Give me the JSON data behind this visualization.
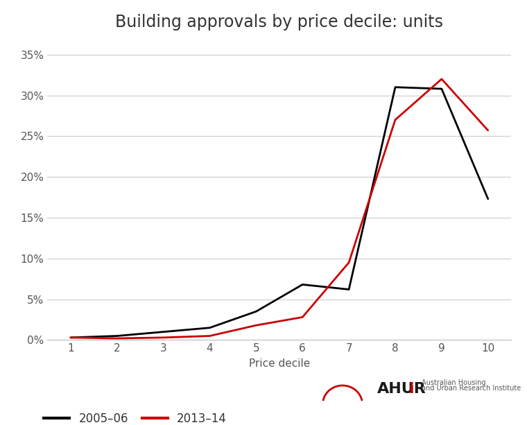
{
  "title": "Building approvals by price decile: units",
  "xlabel": "Price decile",
  "x": [
    1,
    2,
    3,
    4,
    5,
    6,
    7,
    8,
    9,
    10
  ],
  "series_2005": [
    0.003,
    0.005,
    0.01,
    0.015,
    0.035,
    0.068,
    0.062,
    0.31,
    0.308,
    0.173
  ],
  "series_2013": [
    0.003,
    0.002,
    0.003,
    0.005,
    0.018,
    0.028,
    0.095,
    0.27,
    0.32,
    0.257
  ],
  "color_2005": "#000000",
  "color_2013": "#cc0000",
  "line_width": 2.0,
  "ylim": [
    0.0,
    0.37
  ],
  "yticks": [
    0.0,
    0.05,
    0.1,
    0.15,
    0.2,
    0.25,
    0.3,
    0.35
  ],
  "background_color": "#ffffff",
  "grid_color": "#cccccc",
  "title_fontsize": 17,
  "label_fontsize": 11,
  "tick_fontsize": 11,
  "legend_2005": "2005–06",
  "legend_2013": "2013–14",
  "ahuri_text": "AHURi",
  "ahuri_sub1": "Australian Housing",
  "ahuri_sub2": "and Urban Research Institute"
}
